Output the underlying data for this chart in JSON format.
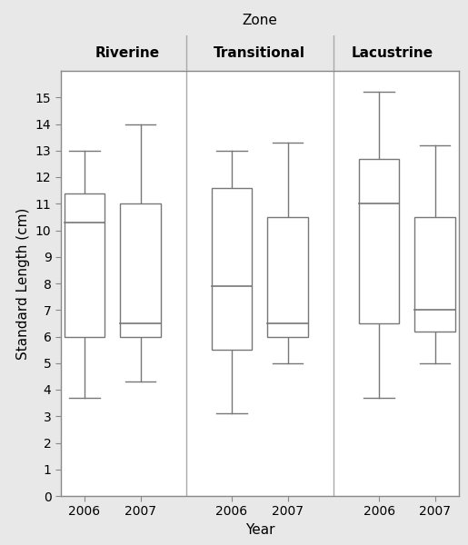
{
  "zones": [
    "Riverine",
    "Transitional",
    "Lacustrine"
  ],
  "years": [
    "2006",
    "2007"
  ],
  "boxplot_stats": {
    "Riverine": {
      "2006": {
        "whislo": 3.7,
        "q1": 6.0,
        "med": 10.3,
        "q3": 11.4,
        "whishi": 13.0
      },
      "2007": {
        "whislo": 4.3,
        "q1": 6.0,
        "med": 6.5,
        "q3": 11.0,
        "whishi": 14.0
      }
    },
    "Transitional": {
      "2006": {
        "whislo": 3.1,
        "q1": 5.5,
        "med": 7.9,
        "q3": 11.6,
        "whishi": 13.0
      },
      "2007": {
        "whislo": 5.0,
        "q1": 6.0,
        "med": 6.5,
        "q3": 10.5,
        "whishi": 13.3
      }
    },
    "Lacustrine": {
      "2006": {
        "whislo": 3.7,
        "q1": 6.5,
        "med": 11.0,
        "q3": 12.7,
        "whishi": 15.2
      },
      "2007": {
        "whislo": 5.0,
        "q1": 6.2,
        "med": 7.0,
        "q3": 10.5,
        "whishi": 13.2
      }
    }
  },
  "ylabel": "Standard Length (cm)",
  "xlabel": "Year",
  "zone_label": "Zone",
  "ylim": [
    0,
    16
  ],
  "yticks": [
    0,
    1,
    2,
    3,
    4,
    5,
    6,
    7,
    8,
    9,
    10,
    11,
    12,
    13,
    14,
    15
  ],
  "box_color": "white",
  "box_edgecolor": "#777777",
  "whisker_color": "#777777",
  "median_color": "#777777",
  "cap_color": "#777777",
  "background_color": "#e8e8e8",
  "plot_bg_color": "white",
  "header_top_bg": "#c8c8b8",
  "header_bot_bg": "#ddddd0",
  "box_width": 0.55,
  "tick_label_fontsize": 10,
  "axis_label_fontsize": 11,
  "zone_label_fontsize": 11,
  "zone_name_fontsize": 11,
  "divider_color": "#aaaaaa",
  "spine_color": "#888888"
}
